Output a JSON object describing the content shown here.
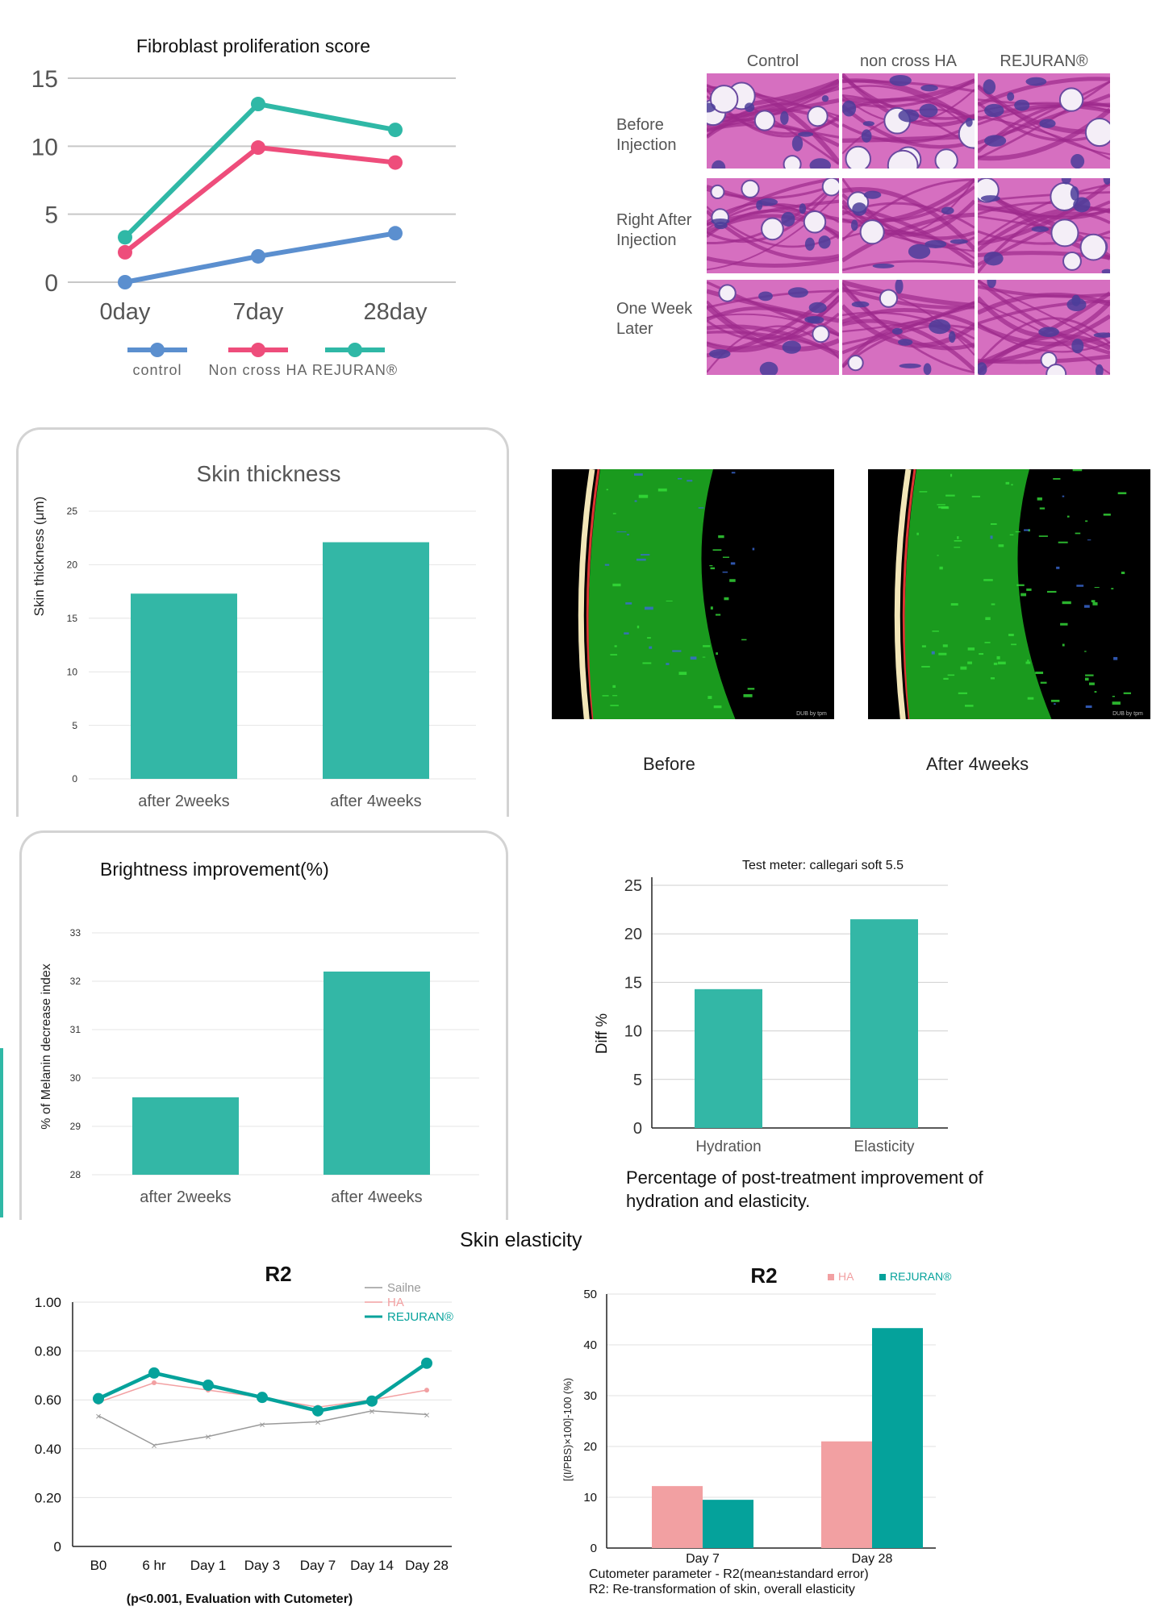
{
  "colors": {
    "blue": "#5b8fcf",
    "pink": "#ee4d7b",
    "teal": "#2fb8a6",
    "teal_bar": "#33b7a6",
    "dark_teal": "#05a29b",
    "light_pink": "#f2a0a2",
    "gray": "#9a9a9a"
  },
  "fibroblast": {
    "title": "Fibroblast proliferation score",
    "chart_data": {
      "type": "line",
      "title": "Fibroblast proliferation score",
      "categories": [
        "0day",
        "7day",
        "28day"
      ],
      "yticks": [
        "0",
        "5",
        "10",
        "15"
      ],
      "ylim": [
        0,
        15
      ],
      "grid": true,
      "legend_position": "bottom",
      "series": [
        {
          "name": "control",
          "values": [
            0,
            1.9,
            3.6
          ]
        },
        {
          "name": "Non cross HA",
          "values": [
            2.2,
            9.9,
            8.8
          ]
        },
        {
          "name": "REJURAN®",
          "values": [
            3.3,
            13.1,
            11.2
          ]
        }
      ]
    }
  },
  "histology": {
    "columns": [
      "Control",
      "non cross HA",
      "REJURAN®"
    ],
    "rows": [
      "Before Injection",
      "Right After Injection",
      "One Week Later"
    ],
    "image_name": "stained-tissue-micrograph"
  },
  "skin_thickness": {
    "title": "Skin thickness",
    "chart_data": {
      "type": "bar",
      "title": "Skin thickness",
      "ylabel": "Skin thickness (μm)",
      "categories": [
        "after 2weeks",
        "after 4weeks"
      ],
      "values": [
        17.3,
        22.1
      ],
      "yticks": [
        "0",
        "5",
        "10",
        "15",
        "20",
        "25"
      ],
      "ylim": [
        0,
        25
      ],
      "grid": true
    }
  },
  "ultrasound": {
    "captions": [
      "Before",
      "After 4weeks"
    ],
    "stamp": "DUB by tpm"
  },
  "brightness": {
    "title": "Brightness improvement(%)",
    "chart_data": {
      "type": "bar",
      "title": "Brightness improvement(%)",
      "ylabel": "% of Melanin decrease index",
      "categories": [
        "after 2weeks",
        "after 4weeks"
      ],
      "values": [
        29.6,
        32.2
      ],
      "yticks": [
        "28",
        "29",
        "30",
        "31",
        "32",
        "33"
      ],
      "ylim": [
        28,
        33
      ],
      "grid": true
    }
  },
  "hydration": {
    "note": "Test meter: callegari soft 5.5",
    "caption": "Percentage of post-treatment improvement of hydration and elasticity.",
    "chart_data": {
      "type": "bar",
      "ylabel": "Diff %",
      "categories": [
        "Hydration",
        "Elasticity"
      ],
      "values": [
        14.3,
        21.5
      ],
      "yticks": [
        "0",
        "5",
        "10",
        "15",
        "20",
        "25"
      ],
      "ylim": [
        0,
        25
      ],
      "grid": true
    }
  },
  "section_title": "Skin elasticity",
  "r2_line": {
    "title": "R2",
    "footnote": "(p<0.001, Evaluation with Cutometer)",
    "chart_data": {
      "type": "line",
      "title": "R2",
      "categories": [
        "B0",
        "6 hr",
        "Day 1",
        "Day 3",
        "Day 7",
        "Day 14",
        "Day 28"
      ],
      "yticks": [
        "0",
        "0.20",
        "0.40",
        "0.60",
        "0.80",
        "1.00"
      ],
      "ylim": [
        0,
        1
      ],
      "grid": true,
      "legend_position": "top-right",
      "series": [
        {
          "name": "Sailne",
          "values": [
            0.535,
            0.415,
            0.45,
            0.5,
            0.51,
            0.555,
            0.54
          ]
        },
        {
          "name": "HA",
          "values": [
            0.59,
            0.67,
            0.64,
            0.61,
            0.57,
            0.6,
            0.64
          ]
        },
        {
          "name": "REJURAN®",
          "values": [
            0.605,
            0.71,
            0.66,
            0.61,
            0.555,
            0.595,
            0.75
          ]
        }
      ]
    }
  },
  "r2_bar": {
    "title": "R2",
    "caption_line1": "Cutometer parameter - R2(mean±standard error)",
    "caption_line2": "R2: Re-transformation of skin, overall elasticity",
    "chart_data": {
      "type": "bar",
      "title": "R2",
      "ylabel": "[(I/PBS)×100]-100 (%)",
      "categories": [
        "Day 7",
        "Day 28"
      ],
      "yticks": [
        "0",
        "10",
        "20",
        "30",
        "40",
        "50"
      ],
      "ylim": [
        0,
        50
      ],
      "grid": true,
      "legend_position": "top-right",
      "series": [
        {
          "name": "HA",
          "values": [
            12.2,
            21
          ]
        },
        {
          "name": "REJURAN®",
          "values": [
            9.5,
            43.3
          ]
        }
      ]
    }
  }
}
